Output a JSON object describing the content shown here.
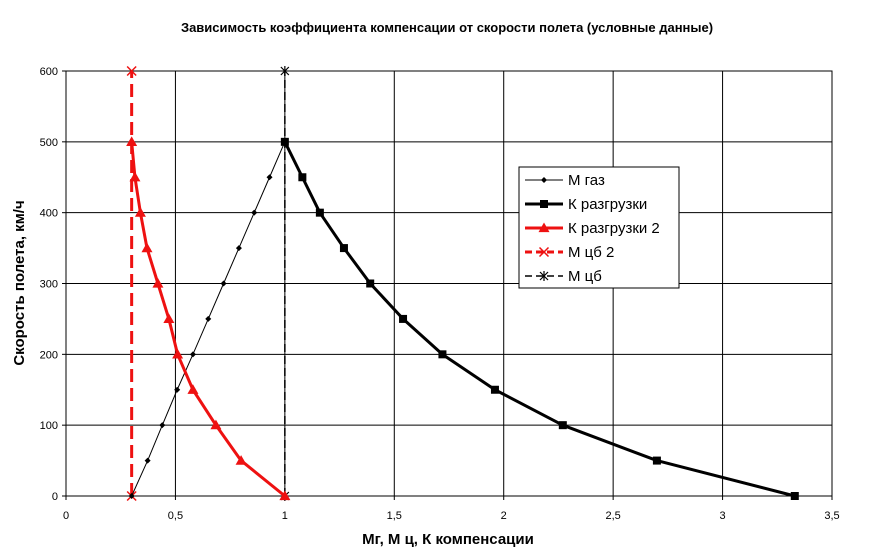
{
  "chart_data": {
    "type": "line",
    "title": "Зависимость коэффициента компенсации от скорости полета (условные данные)",
    "xlabel": "Мг, М ц, К компенсации",
    "ylabel": "Скорость полета, км/ч",
    "xlim": [
      0,
      3.5
    ],
    "ylim": [
      0,
      600
    ],
    "xticks": [
      "0",
      "0,5",
      "1",
      "1,5",
      "2",
      "2,5",
      "3",
      "3,5"
    ],
    "yticks": [
      "0",
      "100",
      "200",
      "300",
      "400",
      "500",
      "600"
    ],
    "grid": true,
    "legend_position": "right",
    "series": [
      {
        "name": "М газ",
        "color": "#000000",
        "marker": "diamond",
        "line": "thin",
        "x": [
          0.3,
          0.373,
          0.44,
          0.508,
          0.58,
          0.65,
          0.72,
          0.79,
          0.86,
          0.93,
          1.0
        ],
        "y": [
          0,
          50,
          100,
          150,
          200,
          250,
          300,
          350,
          400,
          450,
          500
        ]
      },
      {
        "name": "К разгрузки",
        "color": "#000000",
        "marker": "square",
        "line": "thick",
        "x": [
          1.0,
          1.08,
          1.16,
          1.27,
          1.39,
          1.54,
          1.72,
          1.96,
          2.27,
          2.7,
          3.33
        ],
        "y": [
          500,
          450,
          400,
          350,
          300,
          250,
          200,
          150,
          100,
          50,
          0
        ]
      },
      {
        "name": "К разгрузки 2",
        "color": "#ee1111",
        "marker": "triangle",
        "line": "thick",
        "x": [
          0.3,
          0.315,
          0.34,
          0.37,
          0.42,
          0.47,
          0.51,
          0.58,
          0.685,
          0.8,
          1.0
        ],
        "y": [
          500,
          450,
          400,
          350,
          300,
          250,
          200,
          150,
          100,
          50,
          0
        ]
      },
      {
        "name": "М цб 2",
        "color": "#ee1111",
        "marker": "x",
        "line": "dashed-thick",
        "x": [
          0.3,
          0.3
        ],
        "y": [
          0,
          600
        ]
      },
      {
        "name": "М цб",
        "color": "#000000",
        "marker": "star",
        "line": "dashed-thin",
        "x": [
          1.0,
          1.0
        ],
        "y": [
          0,
          600
        ]
      }
    ]
  }
}
